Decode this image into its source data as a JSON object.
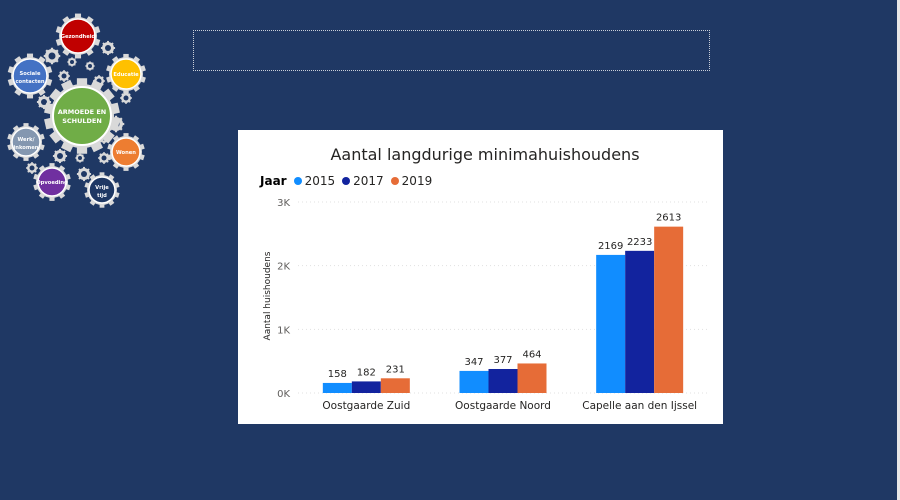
{
  "logo": {
    "center_label_line1": "ARMOEDE EN",
    "center_label_line2": "SCHULDEN",
    "topics": [
      {
        "line1": "Gezondheid",
        "line2": "",
        "color": "#c00000"
      },
      {
        "line1": "Educatie",
        "line2": "",
        "color": "#ffc000"
      },
      {
        "line1": "Wonen",
        "line2": "",
        "color": "#ed7d31"
      },
      {
        "line1": "Vrije",
        "line2": "tijd",
        "color": "#1f3864"
      },
      {
        "line1": "Opvoeding",
        "line2": "",
        "color": "#7030a0"
      },
      {
        "line1": "Werk/",
        "line2": "inkomen",
        "color": "#8497b0"
      },
      {
        "line1": "Sociale",
        "line2": "contacten",
        "color": "#4472c4"
      }
    ],
    "center_color": "#70ad47",
    "gear_color": "#d9d9d9"
  },
  "chart_data": {
    "type": "bar",
    "title": "Aantal langdurige minimahuishoudens",
    "legend_title": "Jaar",
    "ylabel": "Aantal huishoudens",
    "xlabel": "",
    "ylim": [
      0,
      3000
    ],
    "yticks": [
      0,
      1000,
      2000,
      3000
    ],
    "ytick_labels": [
      "0K",
      "1K",
      "2K",
      "3K"
    ],
    "grid": true,
    "categories": [
      "Oostgaarde Zuid",
      "Oostgaarde Noord",
      "Capelle aan den Ijssel"
    ],
    "series": [
      {
        "name": "2015",
        "color": "#118dff",
        "values": [
          158,
          347,
          2169
        ]
      },
      {
        "name": "2017",
        "color": "#12239e",
        "values": [
          182,
          377,
          2233
        ]
      },
      {
        "name": "2019",
        "color": "#e66c37",
        "values": [
          231,
          464,
          2613
        ]
      }
    ]
  }
}
